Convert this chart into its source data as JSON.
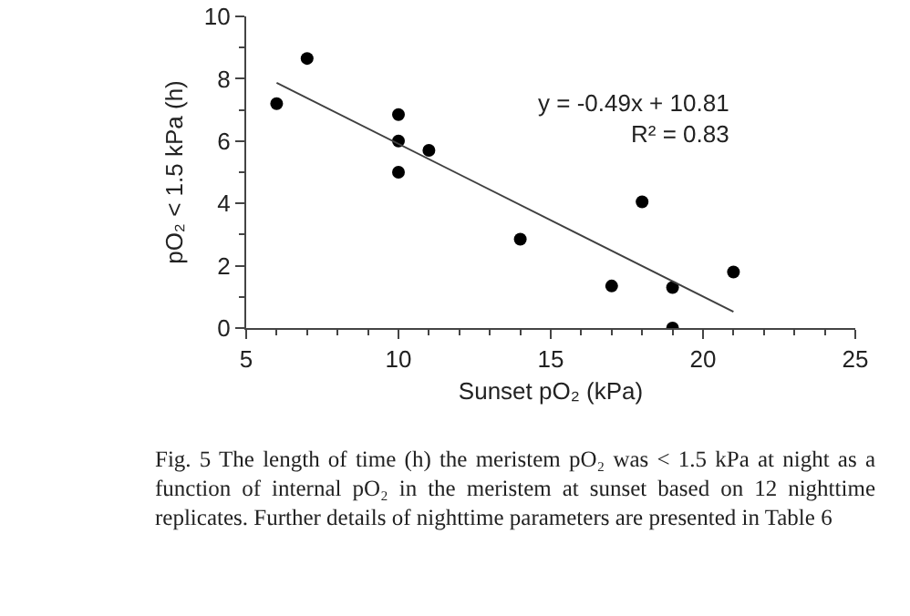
{
  "chart_data": {
    "type": "scatter",
    "xlabel": "Sunset pO₂ (kPa)",
    "ylabel": "pO₂ < 1.5 kPa (h)",
    "x": [
      6,
      7,
      10,
      10,
      10,
      11,
      14,
      17,
      18,
      19,
      19,
      21
    ],
    "series": [
      {
        "color": "#000000",
        "values": [
          7.2,
          8.65,
          6.85,
          6.0,
          5.0,
          5.7,
          2.85,
          1.35,
          4.05,
          1.3,
          0,
          1.8
        ]
      },
      {
        "type": "line",
        "marker": "none",
        "color": "#404040",
        "x": [
          6,
          21
        ],
        "values": [
          7.87,
          0.52
        ]
      }
    ],
    "marker": "circle",
    "line_style": "solid",
    "grid": false,
    "xlim": [
      5,
      25
    ],
    "xticks": [
      5,
      10,
      15,
      20,
      25
    ],
    "ylim": [
      0,
      10
    ],
    "yticks": [
      0,
      2,
      4,
      6,
      8,
      10
    ],
    "annotations": [
      "y = -0.49x + 10.81",
      "R² = 0.83",
      "Fig. 5 The length of time (h) the meristem pO₂ was < 1.5 kPa at night as a function of internal pO₂ in the meristem at sunset based on 12 nighttime replicates. Further details of nighttime parameters are presented in Table 6"
    ]
  }
}
